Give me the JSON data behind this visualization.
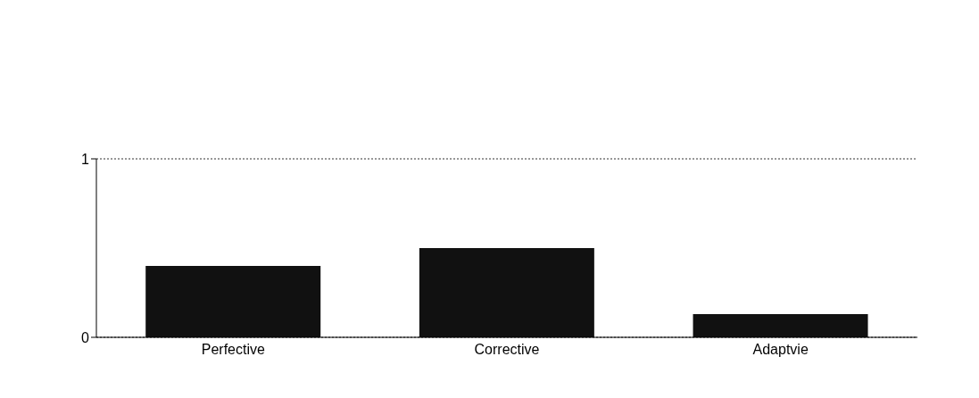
{
  "chart_data": {
    "type": "bar",
    "categories": [
      "Perfective",
      "Corrective",
      "Adaptvie"
    ],
    "values": [
      0.4,
      0.5,
      0.13
    ],
    "color": "#111111",
    "ylim": [
      0,
      1
    ],
    "yticks": [
      0,
      1
    ],
    "grid": "y"
  }
}
